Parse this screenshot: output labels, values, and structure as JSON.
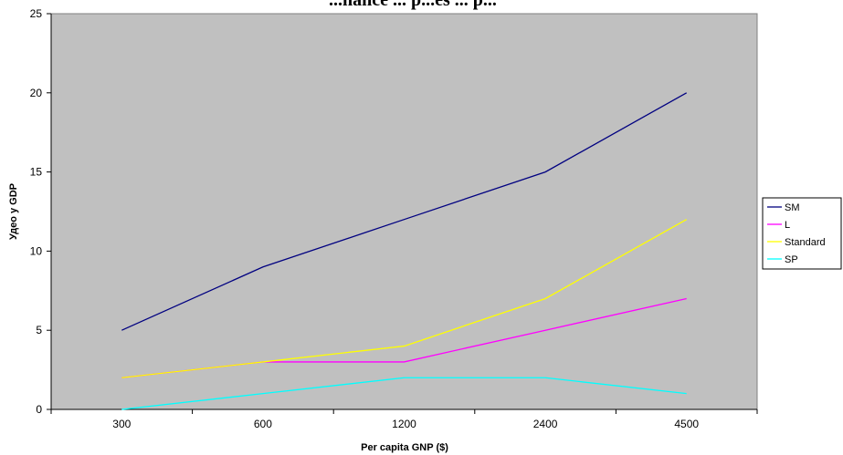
{
  "chart_data": {
    "type": "line",
    "title": "...nance ... p...es ... p...",
    "xlabel": "Per capita GNP ($)",
    "ylabel": "Удео у GDP",
    "categories": [
      "300",
      "600",
      "1200",
      "2400",
      "4500"
    ],
    "ylim": [
      0,
      25
    ],
    "yticks": [
      0,
      5,
      10,
      15,
      20,
      25
    ],
    "grid": false,
    "plot_background": "#c0c0c0",
    "legend_position": "right",
    "series": [
      {
        "name": "SM",
        "color": "#000080",
        "values": [
          5,
          9,
          12,
          15,
          20
        ]
      },
      {
        "name": "L",
        "color": "#ff00ff",
        "values": [
          2,
          3,
          3,
          5,
          7
        ]
      },
      {
        "name": "Standard",
        "color": "#ffff00",
        "values": [
          2,
          3,
          4,
          7,
          12
        ]
      },
      {
        "name": "SP",
        "color": "#00ffff",
        "values": [
          0,
          1,
          2,
          2,
          1
        ]
      }
    ]
  }
}
